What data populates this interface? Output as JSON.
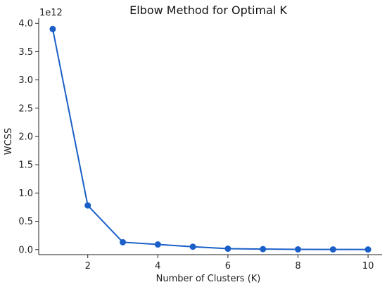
{
  "chart_data": {
    "type": "line",
    "title": "Elbow Method for Optimal K",
    "xlabel": "Number of Clusters (K)",
    "ylabel": "WCSS",
    "y_multiplier_label": "1e12",
    "x": [
      1,
      2,
      3,
      4,
      5,
      6,
      7,
      8,
      9,
      10
    ],
    "series": [
      {
        "values": [
          3.9,
          0.78,
          0.13,
          0.09,
          0.05,
          0.015,
          0.008,
          0.004,
          0.002,
          0.001
        ]
      }
    ],
    "xlim": [
      0.6,
      10.4
    ],
    "ylim": [
      -0.09,
      4.09
    ],
    "xticks": [
      2,
      4,
      6,
      8,
      10
    ],
    "yticks": [
      0.0,
      0.5,
      1.0,
      1.5,
      2.0,
      2.5,
      3.0,
      3.5,
      4.0
    ],
    "ytick_labels": [
      "0.0",
      "0.5",
      "1.0",
      "1.5",
      "2.0",
      "2.5",
      "3.0",
      "3.5",
      "4.0"
    ],
    "grid": false,
    "line_color": "#1a5fc8",
    "marker_color": "#1a5fc8"
  }
}
